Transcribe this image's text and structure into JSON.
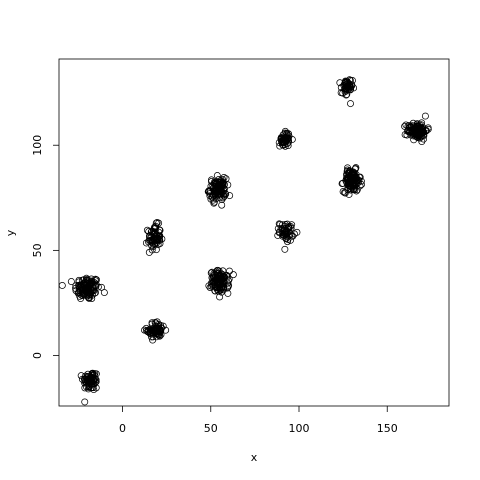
{
  "chart_data": {
    "type": "scatter",
    "title": "",
    "xlabel": "x",
    "ylabel": "y",
    "xlim": [
      -36,
      185
    ],
    "ylim": [
      -24,
      141
    ],
    "x_ticks": [
      0,
      50,
      100,
      150
    ],
    "x_tick_labels": [
      "0",
      "50",
      "100",
      "150"
    ],
    "y_ticks": [
      0,
      50,
      100
    ],
    "y_tick_labels": [
      "0",
      "50",
      "100"
    ],
    "grid": false,
    "legend": "none",
    "marker": "open-circle",
    "marker_color": "#000000",
    "clusters": [
      {
        "x": -20,
        "y": 32,
        "sx": 3.5,
        "sy": 2.8,
        "n": 120
      },
      {
        "x": -18,
        "y": -12,
        "sx": 2.2,
        "sy": 2.4,
        "n": 70
      },
      {
        "x": 18,
        "y": 56,
        "sx": 1.8,
        "sy": 3.0,
        "n": 70
      },
      {
        "x": 19,
        "y": 12,
        "sx": 2.6,
        "sy": 2.0,
        "n": 70
      },
      {
        "x": 54,
        "y": 79,
        "sx": 2.4,
        "sy": 2.6,
        "n": 110
      },
      {
        "x": 55,
        "y": 35,
        "sx": 2.6,
        "sy": 2.6,
        "n": 120
      },
      {
        "x": 92,
        "y": 103,
        "sx": 1.4,
        "sy": 1.8,
        "n": 50
      },
      {
        "x": 93,
        "y": 59,
        "sx": 2.0,
        "sy": 2.2,
        "n": 50
      },
      {
        "x": 127,
        "y": 127,
        "sx": 1.6,
        "sy": 2.4,
        "n": 45
      },
      {
        "x": 130,
        "y": 83,
        "sx": 2.4,
        "sy": 2.6,
        "n": 120
      },
      {
        "x": 167,
        "y": 107,
        "sx": 2.8,
        "sy": 2.0,
        "n": 120
      }
    ]
  }
}
